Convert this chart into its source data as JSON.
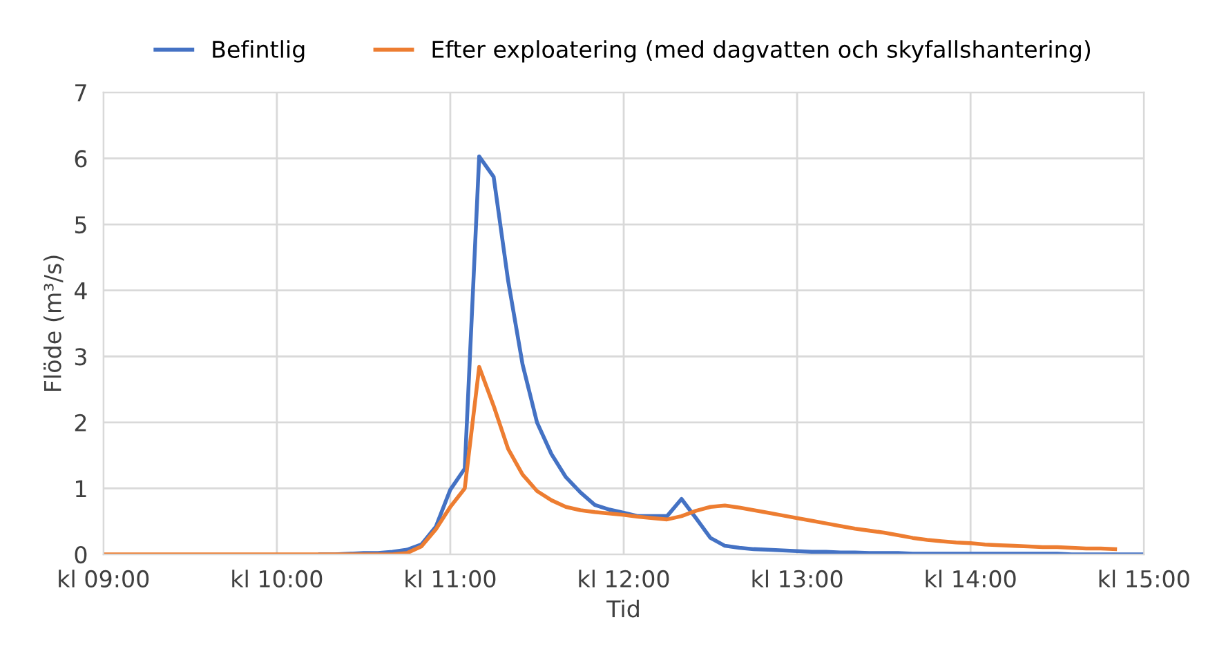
{
  "chart_data": {
    "type": "line",
    "xlabel": "Tid",
    "ylabel": "Flöde (m³/s)",
    "ylim": [
      0,
      7
    ],
    "yticks": [
      0,
      1,
      2,
      3,
      4,
      5,
      6,
      7
    ],
    "categories": [
      "kl 09:00",
      null,
      null,
      null,
      null,
      null,
      null,
      null,
      null,
      null,
      null,
      null,
      "kl 10:00",
      null,
      null,
      null,
      null,
      null,
      null,
      null,
      null,
      null,
      null,
      null,
      "kl 11:00",
      null,
      null,
      null,
      null,
      null,
      null,
      null,
      null,
      null,
      null,
      null,
      "kl 12:00",
      null,
      null,
      null,
      null,
      null,
      null,
      null,
      null,
      null,
      null,
      null,
      "kl 13:00",
      null,
      null,
      null,
      null,
      null,
      null,
      null,
      null,
      null,
      null,
      null,
      "kl 14:00",
      null,
      null,
      null,
      null,
      null,
      null,
      null,
      null,
      null,
      null,
      null,
      "kl 15:00"
    ],
    "grid": true,
    "legend": "top",
    "marker": "none",
    "line_style": "solid",
    "series": [
      {
        "name": "Befintlig",
        "color": "#4472c4",
        "values": [
          null,
          null,
          null,
          null,
          null,
          null,
          null,
          null,
          null,
          null,
          null,
          null,
          null,
          null,
          null,
          0,
          0,
          0.01,
          0.02,
          0.02,
          0.04,
          0.07,
          0.15,
          0.42,
          0.98,
          1.3,
          6.03,
          5.72,
          4.15,
          2.88,
          2.0,
          1.52,
          1.17,
          0.94,
          0.75,
          0.68,
          0.63,
          0.58,
          0.58,
          0.58,
          0.84,
          0.55,
          0.25,
          0.13,
          0.1,
          0.08,
          0.07,
          0.06,
          0.05,
          0.04,
          0.04,
          0.03,
          0.03,
          0.02,
          0.02,
          0.02,
          0.01,
          0.01,
          0.01,
          0.01,
          0.01,
          0.01,
          0.01,
          0.01,
          0.01,
          0.01,
          0.01,
          0,
          0,
          0,
          0,
          0,
          0
        ]
      },
      {
        "name": "Efter exploatering (med dagvatten och skyfallshantering)",
        "color": "#ed7d31",
        "values": [
          0,
          0,
          0,
          0,
          0,
          0,
          0,
          0,
          0,
          0,
          0,
          0,
          0,
          0,
          0,
          0,
          0,
          0,
          0,
          0,
          0,
          0.02,
          0.12,
          0.38,
          0.72,
          1.0,
          2.84,
          2.25,
          1.6,
          1.21,
          0.96,
          0.82,
          0.72,
          0.67,
          0.64,
          0.62,
          0.6,
          0.57,
          0.55,
          0.53,
          0.58,
          0.66,
          0.72,
          0.74,
          0.71,
          0.67,
          0.63,
          0.59,
          0.55,
          0.51,
          0.47,
          0.43,
          0.39,
          0.36,
          0.33,
          0.29,
          0.25,
          0.22,
          0.2,
          0.18,
          0.17,
          0.15,
          0.14,
          0.13,
          0.12,
          0.11,
          0.11,
          0.1,
          0.09,
          0.09,
          0.08,
          null,
          null
        ]
      }
    ]
  }
}
